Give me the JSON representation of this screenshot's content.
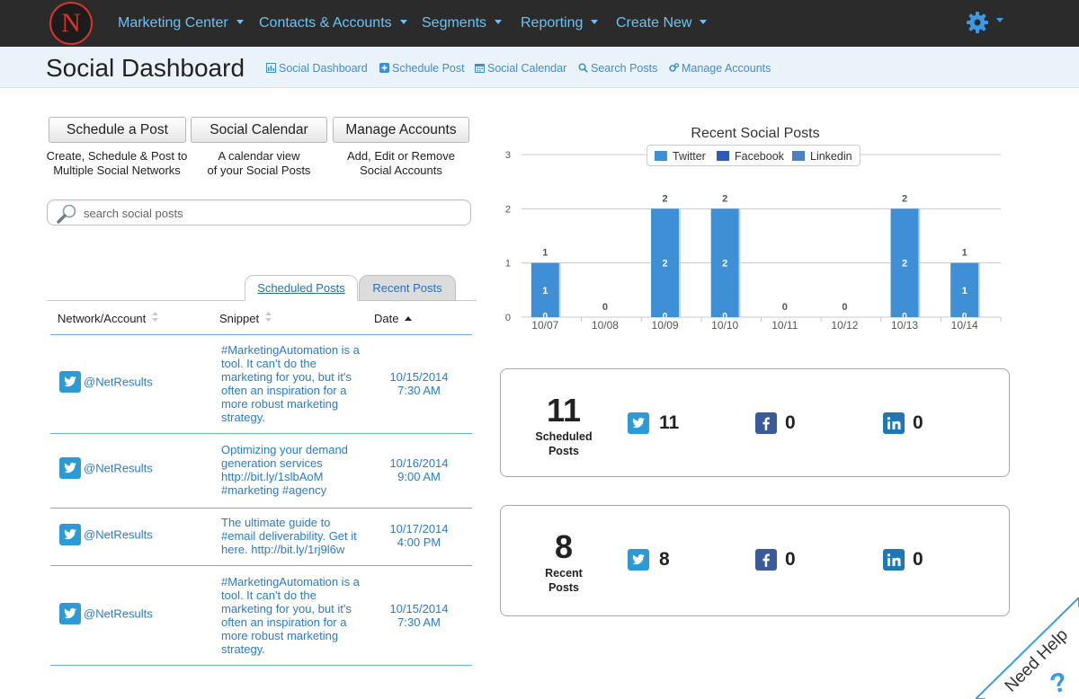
{
  "nav": {
    "logo_letter": "N",
    "items": [
      {
        "label": "Marketing Center"
      },
      {
        "label": "Contacts & Accounts"
      },
      {
        "label": "Segments"
      },
      {
        "label": "Reporting"
      },
      {
        "label": "Create New"
      }
    ],
    "accent": "#6cc2f5"
  },
  "subheader": {
    "title": "Social Dashboard",
    "links": [
      {
        "label": "Social Dashboard",
        "icon": "bar-chart-icon"
      },
      {
        "label": "Schedule Post",
        "icon": "plus-square-icon"
      },
      {
        "label": "Social Calendar",
        "icon": "calendar-icon"
      },
      {
        "label": "Search Posts",
        "icon": "search-icon"
      },
      {
        "label": "Manage Accounts",
        "icon": "gears-icon"
      }
    ]
  },
  "actions": [
    {
      "label": "Schedule a Post",
      "desc1": "Create, Schedule & Post to",
      "desc2": "Multiple Social Networks"
    },
    {
      "label": "Social Calendar",
      "desc1": "A calendar view",
      "desc2": "of your Social Posts"
    },
    {
      "label": "Manage Accounts",
      "desc1": "Add, Edit or Remove",
      "desc2": "Social Accounts"
    }
  ],
  "search": {
    "placeholder": "search social posts"
  },
  "tabs": {
    "active": "Scheduled Posts",
    "inactive": "Recent Posts"
  },
  "table": {
    "headers": {
      "network": "Network/Account",
      "snippet": "Snippet",
      "date": "Date"
    },
    "rows": [
      {
        "account": "@NetResults",
        "snippet": "#MarketingAutomation is a tool. It can't do the marketing for you, but it's often an inspiration for a more robust marketing strategy.",
        "date": "10/15/2014",
        "time": "7:30 AM"
      },
      {
        "account": "@NetResults",
        "snippet": "Optimizing your demand generation services http://bit.ly/1slbAoM #marketing #agency",
        "date": "10/16/2014",
        "time": "9:00 AM"
      },
      {
        "account": "@NetResults",
        "snippet": "The ultimate guide to #email deliverability. Get it here. http://bit.ly/1rj9l6w",
        "date": "10/17/2014",
        "time": "4:00 PM"
      },
      {
        "account": "@NetResults",
        "snippet": "#MarketingAutomation is a tool. It can't do the marketing for you, but it's often an inspiration for a more robust marketing strategy.",
        "date": "10/15/2014",
        "time": "7:30 AM"
      }
    ]
  },
  "chart_data": {
    "type": "bar",
    "title": "Recent Social Posts",
    "categories": [
      "10/07",
      "10/08",
      "10/09",
      "10/10",
      "10/11",
      "10/12",
      "10/13",
      "10/14"
    ],
    "series": [
      {
        "name": "Twitter",
        "values": [
          1,
          0,
          2,
          2,
          0,
          0,
          2,
          1
        ],
        "color": "#3f8fd6"
      },
      {
        "name": "Facebook",
        "values": [
          0,
          0,
          0,
          0,
          0,
          0,
          0,
          0
        ],
        "color": "#2f5bb8"
      },
      {
        "name": "Linkedin",
        "values": [
          0,
          0,
          0,
          0,
          0,
          0,
          0,
          0
        ],
        "color": "#4d7fc4"
      }
    ],
    "totals": [
      1,
      0,
      2,
      2,
      0,
      0,
      2,
      1
    ],
    "ylim": [
      0,
      3
    ],
    "yticks": [
      0,
      1,
      2,
      3
    ],
    "grid": true,
    "legend_position": "top"
  },
  "stats": {
    "scheduled": {
      "count": "11",
      "label1": "Scheduled",
      "label2": "Posts",
      "twitter": "11",
      "facebook": "0",
      "linkedin": "0"
    },
    "recent": {
      "count": "8",
      "label1": "Recent",
      "label2": "Posts",
      "twitter": "8",
      "facebook": "0",
      "linkedin": "0"
    }
  },
  "help": {
    "label": "Need Help",
    "mark": "?"
  }
}
